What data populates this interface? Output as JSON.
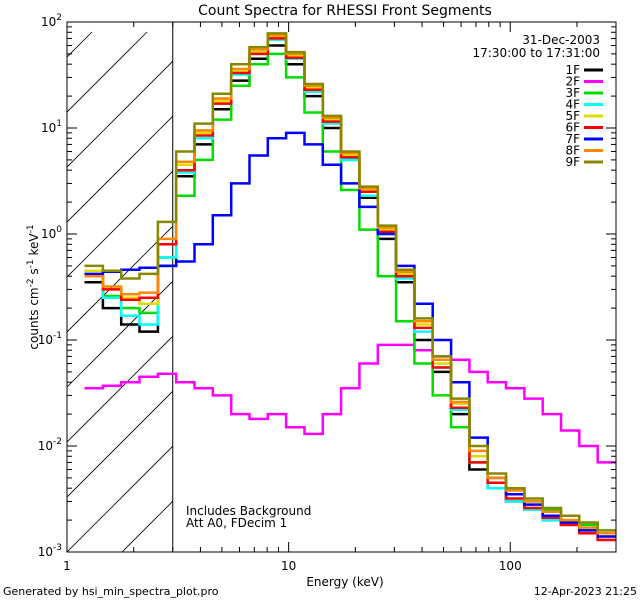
{
  "chart_data": {
    "type": "line",
    "title": "Count Spectra for RHESSI Front Segments",
    "xlabel": "Energy (keV)",
    "ylabel_parts": {
      "base": "counts cm",
      "e1": "-2",
      "mid": " s",
      "e2": "-1",
      "mid2": " keV",
      "e3": "-1"
    },
    "xscale": "log",
    "yscale": "log",
    "xlim": [
      1,
      300
    ],
    "ylim": [
      0.001,
      100
    ],
    "x_ticks": [
      {
        "v": 1,
        "label": "1"
      },
      {
        "v": 10,
        "label": "10"
      },
      {
        "v": 100,
        "label": "100"
      }
    ],
    "y_ticks": [
      {
        "v": 0.001,
        "base": "10",
        "exp": "-3"
      },
      {
        "v": 0.01,
        "base": "10",
        "exp": "-2"
      },
      {
        "v": 0.1,
        "base": "10",
        "exp": "-1"
      },
      {
        "v": 1,
        "base": "10",
        "exp": "0"
      },
      {
        "v": 10,
        "base": "10",
        "exp": "1"
      },
      {
        "v": 100,
        "base": "10",
        "exp": "2"
      }
    ],
    "hatched_region_max_x": 3,
    "date": "31-Dec-2003",
    "time_range": "17:30:00 to 17:31:00",
    "annotations": [
      "Includes Background",
      "Att A0, FDecim 1"
    ],
    "legend_position": "top-right",
    "series": [
      {
        "name": "1F",
        "color": "#000000",
        "values": [
          0.35,
          0.2,
          0.14,
          0.12,
          0.5,
          3.5,
          7,
          15,
          28,
          45,
          60,
          40,
          20,
          10,
          5,
          2.2,
          0.9,
          0.35,
          0.1,
          0.05,
          0.02,
          0.006,
          0.004,
          0.003,
          0.0025,
          0.002,
          0.0018,
          0.0015,
          0.0013
        ]
      },
      {
        "name": "2F",
        "color": "#ff00ff",
        "values": [
          0.035,
          0.037,
          0.04,
          0.045,
          0.048,
          0.04,
          0.035,
          0.03,
          0.02,
          0.018,
          0.02,
          0.015,
          0.013,
          0.02,
          0.035,
          0.06,
          0.09,
          0.09,
          0.08,
          0.07,
          0.065,
          0.05,
          0.04,
          0.035,
          0.028,
          0.02,
          0.014,
          0.01,
          0.007
        ]
      },
      {
        "name": "3F",
        "color": "#00dd00",
        "values": [
          0.4,
          0.26,
          0.2,
          0.18,
          0.6,
          2.3,
          5,
          12,
          25,
          40,
          50,
          30,
          14,
          6,
          2.6,
          1.1,
          0.4,
          0.15,
          0.06,
          0.03,
          0.015,
          0.007,
          0.005,
          0.004,
          0.003,
          0.0025,
          0.002,
          0.0018,
          0.0015
        ]
      },
      {
        "name": "4F",
        "color": "#00ffff",
        "values": [
          0.4,
          0.25,
          0.17,
          0.14,
          0.6,
          3.8,
          8,
          17,
          32,
          50,
          68,
          45,
          22,
          11,
          5,
          2.3,
          1,
          0.38,
          0.12,
          0.055,
          0.022,
          0.007,
          0.004,
          0.003,
          0.0025,
          0.002,
          0.0018,
          0.0015,
          0.0013
        ]
      },
      {
        "name": "5F",
        "color": "#dddd00",
        "values": [
          0.45,
          0.3,
          0.25,
          0.22,
          0.8,
          4.5,
          9,
          18,
          34,
          52,
          72,
          48,
          24,
          12,
          5.5,
          2.6,
          1.1,
          0.42,
          0.14,
          0.06,
          0.025,
          0.008,
          0.005,
          0.0035,
          0.0028,
          0.0022,
          0.0019,
          0.0016,
          0.0014
        ]
      },
      {
        "name": "6F",
        "color": "#ff0000",
        "values": [
          0.4,
          0.3,
          0.24,
          0.25,
          0.8,
          4,
          8.5,
          17,
          33,
          50,
          70,
          46,
          23,
          11.5,
          5.3,
          2.5,
          1.05,
          0.4,
          0.13,
          0.055,
          0.023,
          0.007,
          0.0045,
          0.0032,
          0.0026,
          0.0021,
          0.0018,
          0.0015,
          0.0013
        ]
      },
      {
        "name": "7F",
        "color": "#0000ff",
        "values": [
          0.42,
          0.44,
          0.46,
          0.48,
          0.5,
          0.55,
          0.8,
          1.5,
          3,
          5.5,
          8,
          9,
          7,
          4.5,
          3,
          1.8,
          1,
          0.5,
          0.22,
          0.1,
          0.04,
          0.012,
          0.005,
          0.0035,
          0.0028,
          0.0022,
          0.0019,
          0.0016,
          0.0014
        ]
      },
      {
        "name": "8F",
        "color": "#ff8800",
        "values": [
          0.4,
          0.32,
          0.27,
          0.28,
          0.9,
          4.8,
          9.5,
          19,
          36,
          55,
          75,
          50,
          25,
          12.5,
          5.8,
          2.7,
          1.15,
          0.44,
          0.15,
          0.065,
          0.026,
          0.009,
          0.005,
          0.0038,
          0.003,
          0.0024,
          0.002,
          0.0017,
          0.0015
        ]
      },
      {
        "name": "9F",
        "color": "#888800",
        "values": [
          0.5,
          0.45,
          0.38,
          0.42,
          1.3,
          6,
          11,
          21,
          40,
          58,
          78,
          52,
          26,
          13,
          6,
          2.8,
          1.2,
          0.46,
          0.16,
          0.07,
          0.028,
          0.01,
          0.0055,
          0.004,
          0.0032,
          0.0026,
          0.0022,
          0.0019,
          0.0016
        ]
      }
    ]
  },
  "footer": {
    "left": "Generated by hsi_min_spectra_plot.pro",
    "right": "12-Apr-2023 21:25"
  }
}
